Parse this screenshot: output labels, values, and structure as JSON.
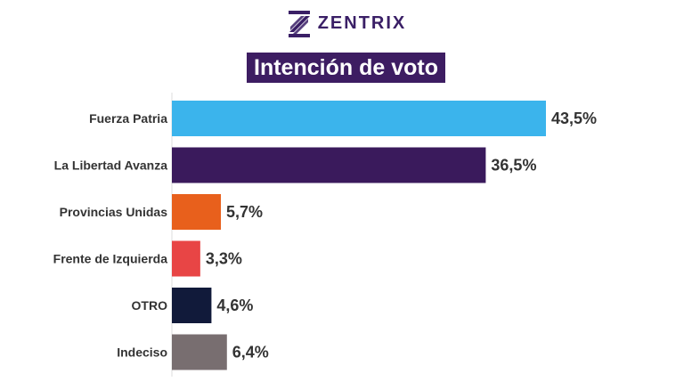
{
  "header": {
    "brand": "ZENTRIX",
    "logo_icon": "zentrix-z-logo-icon",
    "brand_color": "#3a1f66"
  },
  "chart_data": {
    "type": "bar",
    "orientation": "horizontal",
    "title": "Intención de voto",
    "categories": [
      "Fuerza Patria",
      "La Libertad Avanza",
      "Provincias Unidas",
      "Frente de Izquierda",
      "OTRO",
      "Indeciso"
    ],
    "values": [
      43.5,
      36.5,
      5.7,
      3.3,
      4.6,
      6.4
    ],
    "value_labels": [
      "43,5%",
      "36,5%",
      "5,7%",
      "3,3%",
      "4,6%",
      "6,4%"
    ],
    "colors": [
      "#3bb4ec",
      "#3a1a5c",
      "#e8601c",
      "#e84545",
      "#111a3a",
      "#786e70"
    ],
    "xlim": [
      0,
      43.5
    ],
    "grid": false,
    "legend": "none",
    "title_background": "#3d1d62"
  }
}
